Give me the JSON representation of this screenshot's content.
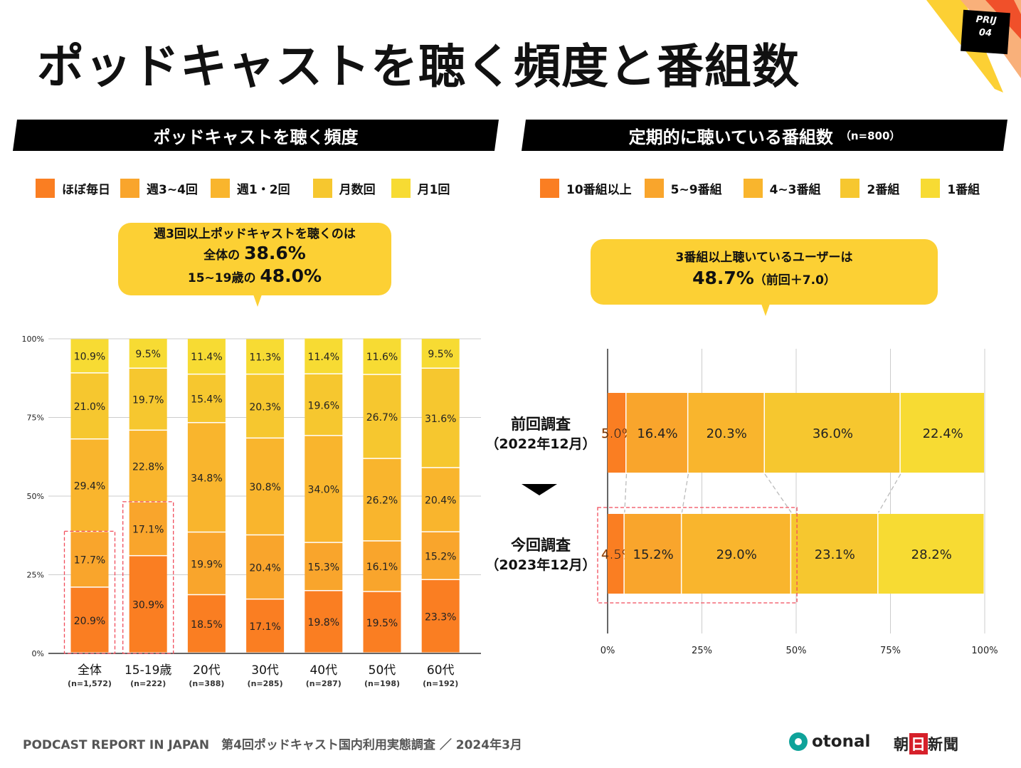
{
  "page": {
    "title": "ポッドキャストを聴く頻度と番組数",
    "badge": {
      "line1": "PRIJ",
      "line2": "04"
    },
    "footer": "PODCAST REPORT IN JAPAN　第4回ポッドキャスト国内利用実態調査 ／ 2024年3月",
    "logos": {
      "otonal": "otonal",
      "asahi_pre": "朝",
      "asahi_box": "日",
      "asahi_post": "新聞"
    },
    "colors": {
      "c1": "#FA7E22",
      "c2": "#F9A52C",
      "c3": "#F9B52D",
      "c4": "#F6C72F",
      "c5": "#F7DB33",
      "callout": "#FCD034",
      "highlight": "#F04B5A",
      "banner": "#000000"
    }
  },
  "left": {
    "banner": "ポッドキャストを聴く頻度",
    "legend": [
      "ほぼ毎日",
      "週3~4回",
      "週1・2回",
      "月数回",
      "月1回"
    ],
    "callout": {
      "line1": "週3回以上ポッドキャストを聴くのは",
      "line2_prefix": "全体の ",
      "line2_value": "38.6%",
      "line3_prefix": "15~19歳の ",
      "line3_value": "48.0%"
    }
  },
  "right": {
    "banner": "定期的に聴いている番組数",
    "banner_sub": "（n=800）",
    "legend": [
      "10番組以上",
      "5~9番組",
      "4~3番組",
      "2番組",
      "1番組"
    ],
    "arrow": "down-triangle",
    "callout": {
      "line1": "3番組以上聴いているユーザーは",
      "line2_value": "48.7%",
      "line2_suffix": "（前回＋7.0）"
    }
  },
  "chart_data": [
    {
      "type": "bar",
      "stacked": true,
      "orientation": "vertical",
      "title": "ポッドキャストを聴く頻度",
      "categories": [
        "全体",
        "15-19歳",
        "20代",
        "30代",
        "40代",
        "50代",
        "60代"
      ],
      "sample_sizes": [
        "(n=1,572)",
        "(n=222)",
        "(n=388)",
        "(n=285)",
        "(n=287)",
        "(n=198)",
        "(n=192)"
      ],
      "series": [
        {
          "name": "ほぼ毎日",
          "values": [
            20.9,
            30.9,
            18.5,
            17.1,
            19.8,
            19.5,
            23.3
          ]
        },
        {
          "name": "週3~4回",
          "values": [
            17.7,
            17.1,
            19.9,
            20.4,
            15.3,
            16.1,
            15.2
          ]
        },
        {
          "name": "週1・2回",
          "values": [
            29.4,
            22.8,
            34.8,
            30.8,
            34.0,
            26.2,
            20.4
          ]
        },
        {
          "name": "月数回",
          "values": [
            21.0,
            19.7,
            15.4,
            20.3,
            19.6,
            26.7,
            31.6
          ]
        },
        {
          "name": "月1回",
          "values": [
            10.9,
            9.5,
            11.4,
            11.3,
            11.4,
            11.6,
            9.5
          ]
        }
      ],
      "yticks": [
        "0%",
        "25%",
        "50%",
        "75%",
        "100%"
      ],
      "ylim": [
        0,
        100
      ],
      "grid": true,
      "legend": "top",
      "highlighted_categories": [
        "全体",
        "15-19歳"
      ],
      "highlight_series": [
        "ほぼ毎日",
        "週3~4回"
      ]
    },
    {
      "type": "bar",
      "stacked": true,
      "orientation": "horizontal",
      "title": "定期的に聴いている番組数 (n=800)",
      "categories": [
        {
          "line1": "前回調査",
          "line2": "（2022年12月）"
        },
        {
          "line1": "今回調査",
          "line2": "（2023年12月）"
        }
      ],
      "series": [
        {
          "name": "10番組以上",
          "values": [
            5.0,
            4.5
          ]
        },
        {
          "name": "5~9番組",
          "values": [
            16.4,
            15.2
          ]
        },
        {
          "name": "4~3番組",
          "values": [
            20.3,
            29.0
          ]
        },
        {
          "name": "2番組",
          "values": [
            36.0,
            23.1
          ]
        },
        {
          "name": "1番組",
          "values": [
            22.4,
            28.2
          ]
        }
      ],
      "xticks": [
        "0%",
        "25%",
        "50%",
        "75%",
        "100%"
      ],
      "xlim": [
        0,
        100
      ],
      "grid": true,
      "legend": "top",
      "highlighted_categories": [
        "今回調査"
      ],
      "highlight_series": [
        "10番組以上",
        "5~9番組",
        "4~3番組"
      ]
    }
  ]
}
